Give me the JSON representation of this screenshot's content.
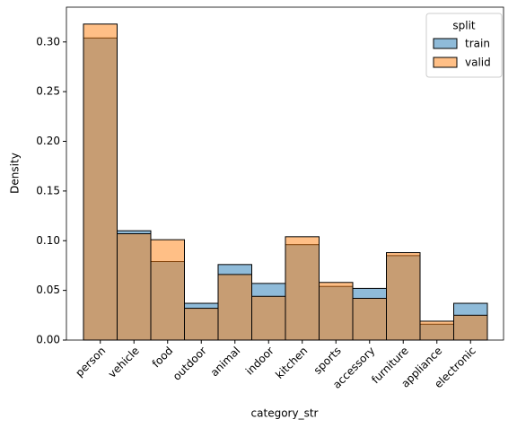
{
  "chart_data": {
    "type": "bar",
    "overlap": true,
    "x_label": "category_str",
    "y_label": "Density",
    "categories": [
      "person",
      "vehicle",
      "food",
      "outdoor",
      "animal",
      "indoor",
      "kitchen",
      "sports",
      "accessory",
      "furniture",
      "appliance",
      "electronic"
    ],
    "series": [
      {
        "name": "train",
        "color": "#1f77b4",
        "values": [
          0.304,
          0.11,
          0.079,
          0.037,
          0.076,
          0.057,
          0.096,
          0.054,
          0.052,
          0.085,
          0.016,
          0.037
        ]
      },
      {
        "name": "valid",
        "color": "#ff7f0e",
        "values": [
          0.318,
          0.107,
          0.101,
          0.032,
          0.066,
          0.044,
          0.104,
          0.058,
          0.042,
          0.088,
          0.019,
          0.025
        ]
      }
    ],
    "legend_title": "split",
    "legend": "upper right",
    "ylim": [
      0,
      0.335
    ],
    "yticks": [
      {
        "value": 0,
        "label": "0.00"
      },
      {
        "value": 0.05,
        "label": "0.05"
      },
      {
        "value": 0.1,
        "label": "0.10"
      },
      {
        "value": 0.15,
        "label": "0.15"
      },
      {
        "value": 0.2,
        "label": "0.20"
      },
      {
        "value": 0.25,
        "label": "0.25"
      },
      {
        "value": 0.3,
        "label": "0.30"
      }
    ]
  }
}
